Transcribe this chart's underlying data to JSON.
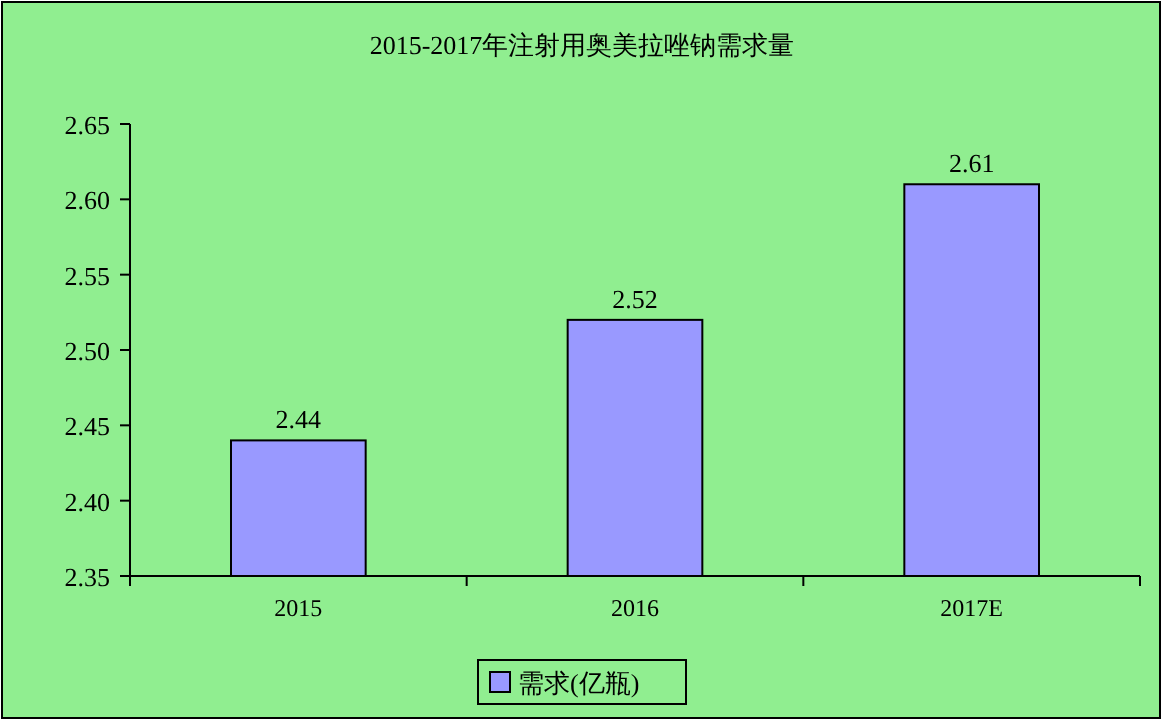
{
  "chart_data": {
    "type": "bar",
    "title": "2015-2017年注射用奥美拉唑钠需求量",
    "categories": [
      "2015",
      "2016",
      "2017E"
    ],
    "series": [
      {
        "name": "需求(亿瓶)",
        "color": "#9999ff",
        "values": [
          2.44,
          2.52,
          2.61
        ]
      }
    ],
    "ylim": [
      2.35,
      2.65
    ],
    "yticks": [
      {
        "value": 2.35,
        "label": "2.35"
      },
      {
        "value": 2.4,
        "label": "2.40"
      },
      {
        "value": 2.45,
        "label": "2.45"
      },
      {
        "value": 2.5,
        "label": "2.50"
      },
      {
        "value": 2.55,
        "label": "2.55"
      },
      {
        "value": 2.6,
        "label": "2.60"
      },
      {
        "value": 2.65,
        "label": "2.65"
      }
    ],
    "data_labels": true,
    "legend": "bottom"
  }
}
